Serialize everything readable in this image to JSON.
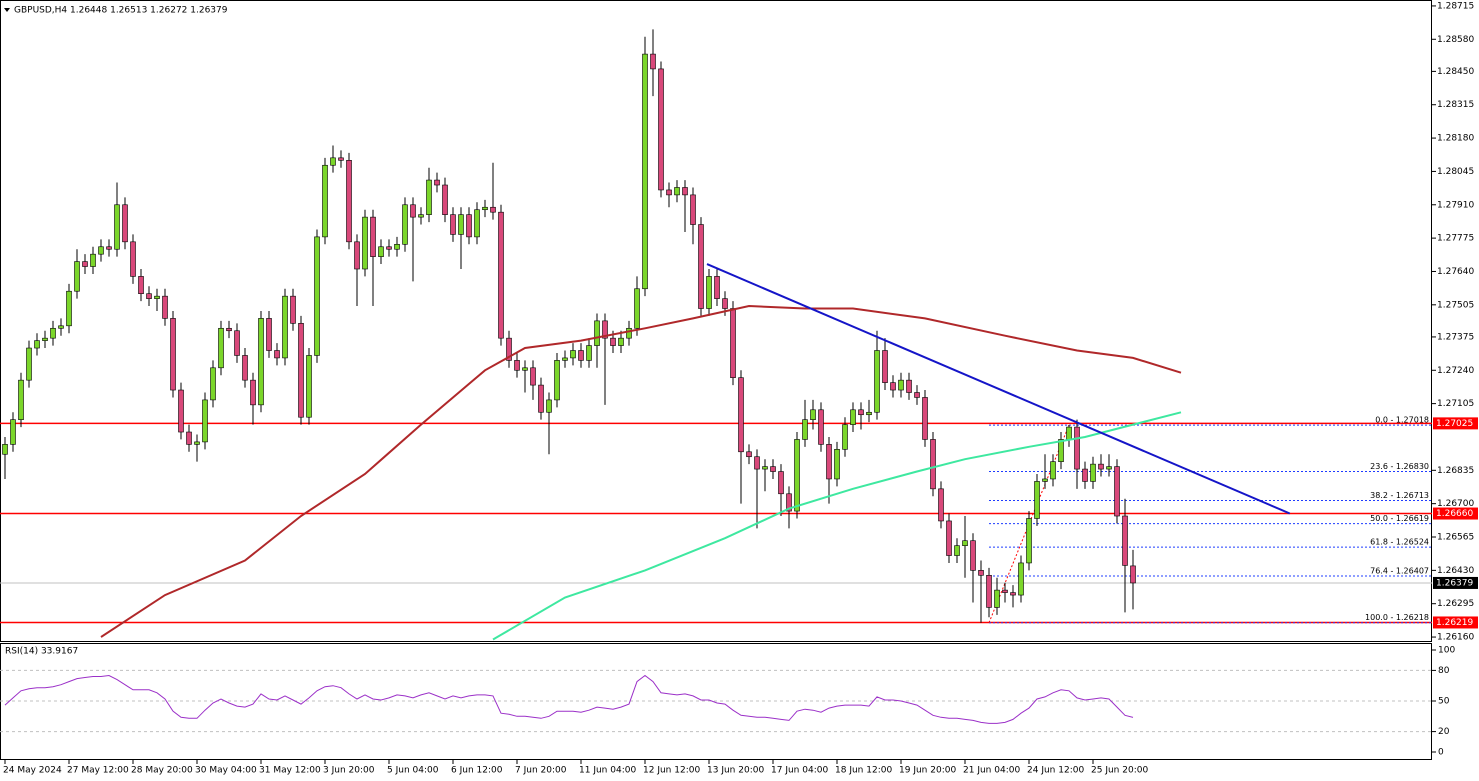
{
  "chart_data": {
    "type": "candlestick",
    "title": "GBPUSD,H4 1.26448 1.26513 1.26272 1.26379",
    "bull_color": "#7bd62a",
    "bear_color": "#d9487a",
    "xlim": [
      -0.625,
      178.375
    ],
    "ylim": [
      1.26144,
      1.28739
    ],
    "yticks": [
      1.28715,
      {
        "value": 1.2858,
        "label": "1.28580"
      },
      {
        "value": 1.2845,
        "label": "1.28450"
      },
      1.28315,
      {
        "value": 1.2818,
        "label": "1.28180"
      },
      1.28045,
      {
        "value": 1.2791,
        "label": "1.27910"
      },
      1.27775,
      {
        "value": 1.2764,
        "label": "1.27640"
      },
      1.27505,
      1.27375,
      {
        "value": 1.2724,
        "label": "1.27240"
      },
      1.27105,
      1.26835,
      {
        "value": 1.267,
        "label": "1.26700"
      },
      1.26565,
      {
        "value": 1.2643,
        "label": "1.26430"
      },
      1.26295,
      {
        "value": 1.2616,
        "label": "1.26160"
      }
    ],
    "xticks": [
      {
        "value": 0,
        "label": "24 May 2024"
      },
      {
        "value": 8,
        "label": "27 May 12:00"
      },
      {
        "value": 16,
        "label": "28 May 20:00"
      },
      {
        "value": 24,
        "label": "30 May 04:00"
      },
      {
        "value": 32,
        "label": "31 May 12:00"
      },
      {
        "value": 40,
        "label": "3 Jun 20:00"
      },
      {
        "value": 48,
        "label": "5 Jun 04:00"
      },
      {
        "value": 56,
        "label": "6 Jun 12:00"
      },
      {
        "value": 64,
        "label": "7 Jun 20:00"
      },
      {
        "value": 72,
        "label": "11 Jun 04:00"
      },
      {
        "value": 80,
        "label": "12 Jun 12:00"
      },
      {
        "value": 88,
        "label": "13 Jun 20:00"
      },
      {
        "value": 96,
        "label": "17 Jun 04:00"
      },
      {
        "value": 104,
        "label": "18 Jun 12:00"
      },
      {
        "value": 112,
        "label": "19 Jun 20:00"
      },
      {
        "value": 120,
        "label": "21 Jun 04:00"
      },
      {
        "value": 128,
        "label": "24 Jun 12:00"
      },
      {
        "value": 136,
        "label": "25 Jun 20:00"
      }
    ],
    "candles": [
      [
        1.269,
        1.2697,
        1.268,
        1.2694
      ],
      [
        1.2694,
        1.2707,
        1.2691,
        1.2704
      ],
      [
        1.2704,
        1.2723,
        1.2701,
        1.272
      ],
      [
        1.272,
        1.2736,
        1.2717,
        1.2733
      ],
      [
        1.2733,
        1.2739,
        1.273,
        1.2736
      ],
      [
        1.2736,
        1.274,
        1.2733,
        1.2737
      ],
      [
        1.2737,
        1.2744,
        1.2734,
        1.2741
      ],
      [
        1.2741,
        1.2745,
        1.2738,
        1.2742
      ],
      [
        1.2742,
        1.2759,
        1.2739,
        1.2756
      ],
      [
        1.2756,
        1.2773,
        1.2753,
        1.2768
      ],
      [
        1.2768,
        1.2771,
        1.2763,
        1.2766
      ],
      [
        1.2766,
        1.2774,
        1.2763,
        1.2771
      ],
      [
        1.2771,
        1.2777,
        1.2768,
        1.2774
      ],
      [
        1.2774,
        1.2777,
        1.277,
        1.2773
      ],
      [
        1.2773,
        1.28,
        1.277,
        1.2791
      ],
      [
        1.2791,
        1.2794,
        1.2773,
        1.2776
      ],
      [
        1.2776,
        1.2779,
        1.2759,
        1.2762
      ],
      [
        1.2762,
        1.2765,
        1.2752,
        1.2755
      ],
      [
        1.2755,
        1.2758,
        1.275,
        1.2753
      ],
      [
        1.2753,
        1.2757,
        1.2748,
        1.2754
      ],
      [
        1.2754,
        1.2757,
        1.2742,
        1.2745
      ],
      [
        1.2745,
        1.2748,
        1.2713,
        1.2716
      ],
      [
        1.2716,
        1.2719,
        1.2696,
        1.2699
      ],
      [
        1.2699,
        1.2702,
        1.2691,
        1.2694
      ],
      [
        1.2694,
        1.2698,
        1.2687,
        1.2695
      ],
      [
        1.2695,
        1.2715,
        1.2692,
        1.2712
      ],
      [
        1.2712,
        1.2728,
        1.2709,
        1.2725
      ],
      [
        1.2725,
        1.2744,
        1.2722,
        1.2741
      ],
      [
        1.2741,
        1.2744,
        1.2737,
        1.274
      ],
      [
        1.274,
        1.2743,
        1.2727,
        1.273
      ],
      [
        1.273,
        1.2733,
        1.2717,
        1.272
      ],
      [
        1.272,
        1.2723,
        1.2702,
        1.271
      ],
      [
        1.271,
        1.2748,
        1.2707,
        1.2745
      ],
      [
        1.2745,
        1.2748,
        1.2729,
        1.2732
      ],
      [
        1.2732,
        1.2735,
        1.2726,
        1.2729
      ],
      [
        1.2729,
        1.2757,
        1.2726,
        1.2754
      ],
      [
        1.2754,
        1.2757,
        1.274,
        1.2743
      ],
      [
        1.2743,
        1.2746,
        1.2702,
        1.2705
      ],
      [
        1.2705,
        1.2733,
        1.2702,
        1.273
      ],
      [
        1.273,
        1.2781,
        1.2727,
        1.2778
      ],
      [
        1.2778,
        1.281,
        1.2775,
        1.2807
      ],
      [
        1.2807,
        1.2815,
        1.2804,
        1.281
      ],
      [
        1.281,
        1.2813,
        1.2806,
        1.2809
      ],
      [
        1.2809,
        1.2812,
        1.2773,
        1.2776
      ],
      [
        1.2776,
        1.2779,
        1.275,
        1.2765
      ],
      [
        1.2765,
        1.2789,
        1.2762,
        1.2786
      ],
      [
        1.2786,
        1.2789,
        1.275,
        1.277
      ],
      [
        1.277,
        1.2777,
        1.2767,
        1.2774
      ],
      [
        1.2774,
        1.2777,
        1.277,
        1.2773
      ],
      [
        1.2773,
        1.2778,
        1.277,
        1.2775
      ],
      [
        1.2775,
        1.2794,
        1.2772,
        1.2791
      ],
      [
        1.2791,
        1.2794,
        1.276,
        1.2786
      ],
      [
        1.2786,
        1.279,
        1.2783,
        1.2787
      ],
      [
        1.2787,
        1.2806,
        1.2784,
        1.2801
      ],
      [
        1.2801,
        1.2804,
        1.2796,
        1.2799
      ],
      [
        1.2799,
        1.2802,
        1.2784,
        1.2787
      ],
      [
        1.2787,
        1.279,
        1.2776,
        1.2779
      ],
      [
        1.2779,
        1.279,
        1.2765,
        1.2787
      ],
      [
        1.2787,
        1.279,
        1.2775,
        1.2778
      ],
      [
        1.2778,
        1.2792,
        1.2775,
        1.2789
      ],
      [
        1.2789,
        1.2793,
        1.2786,
        1.279
      ],
      [
        1.279,
        1.2808,
        1.2785,
        1.2788
      ],
      [
        1.2788,
        1.2791,
        1.2734,
        1.2737
      ],
      [
        1.2737,
        1.274,
        1.2725,
        1.2728
      ],
      [
        1.2728,
        1.2731,
        1.2721,
        1.2724
      ],
      [
        1.2724,
        1.2728,
        1.2715,
        1.2725
      ],
      [
        1.2725,
        1.2728,
        1.2712,
        1.2718
      ],
      [
        1.2718,
        1.2721,
        1.2704,
        1.2707
      ],
      [
        1.2707,
        1.2715,
        1.269,
        1.2712
      ],
      [
        1.2712,
        1.2731,
        1.2709,
        1.2728
      ],
      [
        1.2728,
        1.2732,
        1.2725,
        1.2729
      ],
      [
        1.2729,
        1.2735,
        1.2726,
        1.2732
      ],
      [
        1.2732,
        1.2735,
        1.2725,
        1.2728
      ],
      [
        1.2728,
        1.2737,
        1.2725,
        1.2734
      ],
      [
        1.2734,
        1.2747,
        1.2725,
        1.2744
      ],
      [
        1.2744,
        1.2747,
        1.271,
        1.2737
      ],
      [
        1.2737,
        1.274,
        1.2731,
        1.2734
      ],
      [
        1.2734,
        1.274,
        1.2731,
        1.2737
      ],
      [
        1.2737,
        1.2744,
        1.2734,
        1.2741
      ],
      [
        1.2741,
        1.2762,
        1.2738,
        1.2757
      ],
      [
        1.2757,
        1.2859,
        1.2754,
        1.2852
      ],
      [
        1.2852,
        1.2862,
        1.2835,
        1.2846
      ],
      [
        1.2846,
        1.2849,
        1.2794,
        1.2797
      ],
      [
        1.2797,
        1.28,
        1.279,
        1.2795
      ],
      [
        1.2795,
        1.2801,
        1.2792,
        1.2798
      ],
      [
        1.2798,
        1.2801,
        1.278,
        1.2795
      ],
      [
        1.2795,
        1.2798,
        1.2775,
        1.2783
      ],
      [
        1.2783,
        1.2786,
        1.2746,
        1.2749
      ],
      [
        1.2749,
        1.2765,
        1.2746,
        1.2762
      ],
      [
        1.2762,
        1.2765,
        1.275,
        1.2753
      ],
      [
        1.2753,
        1.2756,
        1.2746,
        1.2749
      ],
      [
        1.2749,
        1.2752,
        1.2718,
        1.2721
      ],
      [
        1.2721,
        1.2724,
        1.267,
        1.2691
      ],
      [
        1.2691,
        1.2694,
        1.2686,
        1.2689
      ],
      [
        1.2689,
        1.2692,
        1.266,
        1.2684
      ],
      [
        1.2684,
        1.2688,
        1.2675,
        1.2685
      ],
      [
        1.2685,
        1.2688,
        1.268,
        1.2683
      ],
      [
        1.2683,
        1.2686,
        1.2665,
        1.2674
      ],
      [
        1.2674,
        1.2677,
        1.266,
        1.2667
      ],
      [
        1.2667,
        1.2699,
        1.2664,
        1.2696
      ],
      [
        1.2696,
        1.2712,
        1.2693,
        1.2704
      ],
      [
        1.2704,
        1.2712,
        1.27,
        1.2708
      ],
      [
        1.2708,
        1.2711,
        1.2691,
        1.2694
      ],
      [
        1.2694,
        1.2697,
        1.267,
        1.268
      ],
      [
        1.268,
        1.2695,
        1.2677,
        1.2692
      ],
      [
        1.2692,
        1.2705,
        1.2689,
        1.2702
      ],
      [
        1.2702,
        1.2711,
        1.2699,
        1.2708
      ],
      [
        1.2708,
        1.2711,
        1.27,
        1.2706
      ],
      [
        1.2706,
        1.2712,
        1.2703,
        1.2707
      ],
      [
        1.2707,
        1.274,
        1.2704,
        1.2732
      ],
      [
        1.2732,
        1.2737,
        1.2716,
        1.2719
      ],
      [
        1.2719,
        1.2722,
        1.2713,
        1.2716
      ],
      [
        1.2716,
        1.2723,
        1.2713,
        1.272
      ],
      [
        1.272,
        1.2723,
        1.2712,
        1.2715
      ],
      [
        1.2715,
        1.2718,
        1.271,
        1.2713
      ],
      [
        1.2713,
        1.2716,
        1.2693,
        1.2696
      ],
      [
        1.2696,
        1.2699,
        1.2673,
        1.2676
      ],
      [
        1.2676,
        1.2679,
        1.266,
        1.2663
      ],
      [
        1.2663,
        1.2666,
        1.2646,
        1.2649
      ],
      [
        1.2649,
        1.2656,
        1.2646,
        1.2653
      ],
      [
        1.2653,
        1.2665,
        1.264,
        1.2655
      ],
      [
        1.2655,
        1.2658,
        1.263,
        1.2643
      ],
      [
        1.2643,
        1.2647,
        1.26218,
        1.2641
      ],
      [
        1.2641,
        1.2644,
        1.2624,
        1.2628
      ],
      [
        1.2628,
        1.264,
        1.2625,
        1.2635
      ],
      [
        1.2635,
        1.2638,
        1.263,
        1.2634
      ],
      [
        1.2634,
        1.2637,
        1.2628,
        1.2633
      ],
      [
        1.2633,
        1.2649,
        1.263,
        1.2646
      ],
      [
        1.2646,
        1.2667,
        1.2643,
        1.2664
      ],
      [
        1.2664,
        1.2682,
        1.2661,
        1.2679
      ],
      [
        1.2679,
        1.269,
        1.2676,
        1.268
      ],
      [
        1.268,
        1.269,
        1.2677,
        1.2687
      ],
      [
        1.2687,
        1.2699,
        1.2684,
        1.2696
      ],
      [
        1.2696,
        1.27018,
        1.2693,
        1.2701
      ],
      [
        1.2701,
        1.2704,
        1.2676,
        1.2684
      ],
      [
        1.2684,
        1.2687,
        1.2676,
        1.2679
      ],
      [
        1.2679,
        1.2689,
        1.2676,
        1.2686
      ],
      [
        1.2686,
        1.269,
        1.2681,
        1.2684
      ],
      [
        1.2684,
        1.269,
        1.2681,
        1.2685
      ],
      [
        1.2685,
        1.2688,
        1.2662,
        1.2665
      ],
      [
        1.2665,
        1.2672,
        1.2626,
        1.2645
      ],
      [
        1.26448,
        1.26513,
        1.26272,
        1.26379
      ]
    ],
    "moving_averages": [
      {
        "color": "#b0282a",
        "x": [
          12,
          20,
          30,
          37,
          45,
          52,
          60,
          65,
          72,
          80,
          86,
          93,
          100,
          106,
          115,
          125,
          134,
          141,
          147
        ],
        "values": [
          1.2616,
          1.2633,
          1.2647,
          1.2665,
          1.2682,
          1.2702,
          1.2724,
          1.2733,
          1.2736,
          1.2741,
          1.2745,
          1.275,
          1.2749,
          1.2749,
          1.2745,
          1.2738,
          1.2732,
          1.2729,
          1.2723
        ]
      },
      {
        "color": "#3ee8a0",
        "x": [
          61,
          70,
          80,
          90,
          98,
          106,
          114,
          120,
          128,
          135,
          141,
          147
        ],
        "values": [
          1.2615,
          1.2632,
          1.2643,
          1.2656,
          1.2668,
          1.2676,
          1.2683,
          1.2688,
          1.2693,
          1.2697,
          1.2702,
          1.2707
        ]
      }
    ],
    "trendline": {
      "color": "#1515c8",
      "x": [
        87.75,
        160.6
      ],
      "values": [
        1.2767,
        1.2666
      ]
    },
    "levels": [
      {
        "value": 1.27025,
        "label": "1.27025",
        "color": "#ff0000"
      },
      {
        "value": 1.2666,
        "label": "1.26660",
        "color": "#ff0000"
      },
      {
        "value": 1.26219,
        "label": "1.26219",
        "color": "#ff0000"
      }
    ],
    "bid": {
      "value": 1.26379,
      "label": "1.26379",
      "color": "#c0c0c0"
    },
    "fibonacci": {
      "color": "#1f3cff",
      "x_from": 123,
      "x_to": 133,
      "levels": [
        {
          "value": 1.27018,
          "label": "0.0 - 1.27018"
        },
        {
          "value": 1.2683,
          "label": "23.6 - 1.26830"
        },
        {
          "value": 1.26713,
          "label": "38.2 - 1.26713"
        },
        {
          "value": 1.26619,
          "label": "50.0 - 1.26619"
        },
        {
          "value": 1.26524,
          "label": "61.8 - 1.26524"
        },
        {
          "value": 1.26407,
          "label": "76.4 - 1.26407"
        },
        {
          "value": 1.26218,
          "label": "100.0 - 1.26218"
        }
      ]
    },
    "rsi": {
      "title": "RSI(14) 33.9167",
      "color": "#9b30c8",
      "ylim": [
        0,
        100
      ],
      "yticks": [
        100,
        80,
        50,
        20,
        0
      ],
      "values": [
        46,
        53,
        60,
        62,
        63,
        63,
        64,
        66,
        69,
        72,
        73,
        74,
        74,
        75,
        71,
        66,
        61,
        61,
        61,
        58,
        52,
        40,
        34,
        33,
        33,
        41,
        48,
        52,
        48,
        45,
        44,
        47,
        57,
        52,
        51,
        55,
        51,
        47,
        53,
        60,
        64,
        65,
        63,
        57,
        52,
        56,
        52,
        51,
        53,
        56,
        55,
        53,
        56,
        58,
        55,
        52,
        55,
        53,
        55,
        56,
        56,
        55,
        38,
        37,
        35,
        35,
        34,
        33,
        35,
        40,
        40,
        40,
        39,
        41,
        44,
        43,
        42,
        44,
        47,
        69,
        75,
        69,
        58,
        57,
        56,
        57,
        55,
        51,
        51,
        48,
        47,
        41,
        36,
        35,
        34,
        34,
        33,
        32,
        31,
        40,
        42,
        41,
        39,
        43,
        45,
        46,
        46,
        46,
        45,
        54,
        51,
        51,
        50,
        48,
        46,
        41,
        36,
        34,
        33,
        33,
        32,
        31,
        29,
        28,
        28,
        29,
        32,
        38,
        43,
        52,
        54,
        58,
        61,
        60,
        53,
        51,
        52,
        53,
        52,
        44,
        36,
        33.9167
      ]
    }
  }
}
